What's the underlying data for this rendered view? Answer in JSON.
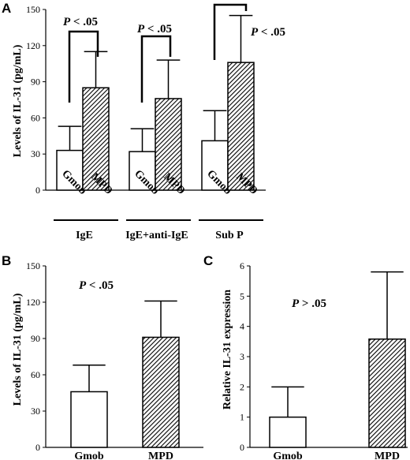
{
  "chart_data": [
    {
      "panel": "A",
      "type": "bar",
      "ylabel": "Levels of IL-31 (pg/mL)",
      "ylim": [
        0,
        150
      ],
      "yticks": [
        "0",
        "30",
        "60",
        "90",
        "120",
        "150"
      ],
      "groups": [
        {
          "label": "IgE",
          "annotation": "P < .05",
          "bars": [
            {
              "category": "Gmob",
              "value": 33,
              "error": 53
            },
            {
              "category": "MPD",
              "value": 85,
              "error": 115
            }
          ]
        },
        {
          "label": "IgE+anti-IgE",
          "annotation": "P < .05",
          "bars": [
            {
              "category": "Gmob",
              "value": 32,
              "error": 51
            },
            {
              "category": "MPD",
              "value": 76,
              "error": 108
            }
          ]
        },
        {
          "label": "Sub P",
          "annotation": "P < .05",
          "bars": [
            {
              "category": "Gmob",
              "value": 41,
              "error": 66
            },
            {
              "category": "MPD",
              "value": 106,
              "error": 145
            }
          ]
        }
      ]
    },
    {
      "panel": "B",
      "type": "bar",
      "ylabel": "Levels of IL-31 (pg/mL)",
      "ylim": [
        0,
        150
      ],
      "yticks": [
        "0",
        "30",
        "60",
        "90",
        "120",
        "150"
      ],
      "annotation": "P < .05",
      "bars": [
        {
          "category": "Gmob",
          "value": 46,
          "error": 68
        },
        {
          "category": "MPD",
          "value": 91,
          "error": 121
        }
      ]
    },
    {
      "panel": "C",
      "type": "bar",
      "ylabel": "Relative IL-31 expression",
      "ylim": [
        0,
        6
      ],
      "yticks": [
        "0",
        "1",
        "2",
        "3",
        "4",
        "5",
        "6"
      ],
      "annotation": "P > .05",
      "bars": [
        {
          "category": "Gmob",
          "value": 1.0,
          "error": 2.0
        },
        {
          "category": "MPD",
          "value": 3.58,
          "error": 5.8
        }
      ]
    }
  ]
}
